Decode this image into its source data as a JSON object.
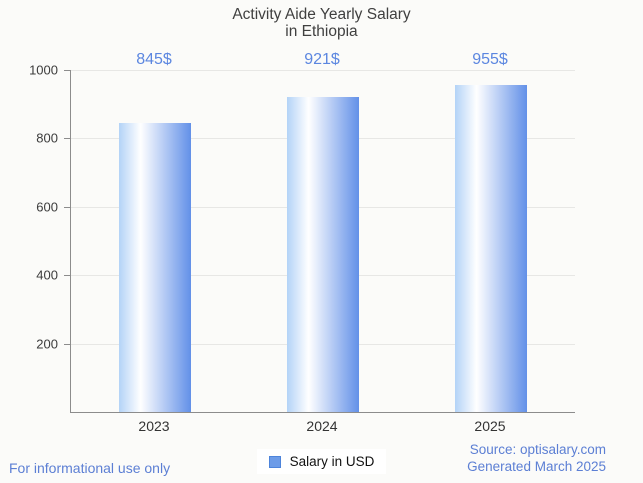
{
  "title": {
    "line1": "Activity Aide Yearly Salary",
    "line2": "in Ethiopia"
  },
  "chart_data": {
    "type": "bar",
    "title": "Activity Aide Yearly Salary in Ethiopia",
    "categories": [
      "2023",
      "2024",
      "2025"
    ],
    "values": [
      845,
      921,
      955
    ],
    "value_labels": [
      "845$",
      "921$",
      "955$"
    ],
    "series_name": "Salary in USD",
    "xlabel": "",
    "ylabel": "",
    "ylim": [
      0,
      1000
    ],
    "yticks": [
      200,
      400,
      600,
      800,
      1000
    ],
    "grid": true,
    "legend_position": "bottom"
  },
  "legend": {
    "label": "Salary in USD"
  },
  "footer": {
    "disclaimer": "For informational use only",
    "source": "Source: optisalary.com",
    "generated": "Generated March 2025"
  },
  "colors": {
    "background": "#fbfbf9",
    "title_text": "#404040",
    "axis_line": "#8c8c8c",
    "gridline": "#e7e7e5",
    "tick_text": "#3c3c3c",
    "value_label_text": "#5b86e0",
    "footer_text": "#5c7fd4",
    "bar_gradient_left": "#b3d3f7",
    "bar_gradient_highlight": "#ffffff",
    "bar_gradient_right": "#6290e8",
    "legend_swatch_fill": "#6d9ce8",
    "legend_swatch_border": "#4d84db"
  }
}
